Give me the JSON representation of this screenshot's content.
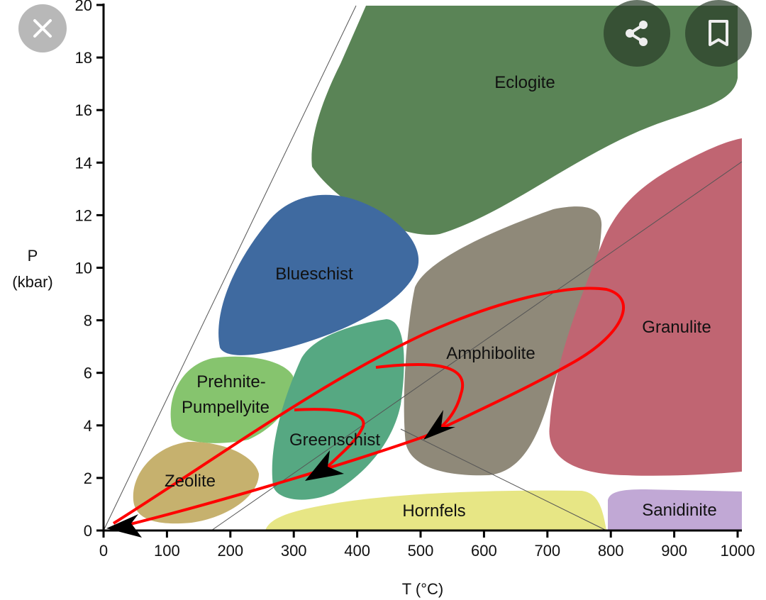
{
  "overlay": {
    "close_icon": "close-icon",
    "share_icon": "share-icon",
    "bookmark_icon": "bookmark-icon"
  },
  "chart_data": {
    "type": "diagram",
    "title": "",
    "xlabel": "T (°C)",
    "ylabel_line1": "P",
    "ylabel_line2": "(kbar)",
    "xlim": [
      0,
      1000
    ],
    "ylim": [
      0,
      20
    ],
    "x_ticks": [
      "0",
      "100",
      "200",
      "300",
      "400",
      "500",
      "600",
      "700",
      "800",
      "900",
      "1000"
    ],
    "y_ticks": [
      "0",
      "2",
      "4",
      "6",
      "8",
      "10",
      "12",
      "14",
      "16",
      "18",
      "20"
    ],
    "facies": [
      {
        "name": "Eclogite",
        "color": "#5a8456"
      },
      {
        "name": "Blueschist",
        "color": "#3f6aa0"
      },
      {
        "name": "Prehnite-",
        "name2": "Pumpellyite",
        "color": "#86c46e"
      },
      {
        "name": "Zeolite",
        "color": "#c6b16e"
      },
      {
        "name": "Greenschist",
        "color": "#56a882"
      },
      {
        "name": "Amphibolite",
        "color": "#8f8979"
      },
      {
        "name": "Granulite",
        "color": "#c06572"
      },
      {
        "name": "Hornfels",
        "color": "#e7e685"
      },
      {
        "name": "Sanidinite",
        "color": "#c1a8d5"
      }
    ],
    "path_color": "#ff0000"
  }
}
